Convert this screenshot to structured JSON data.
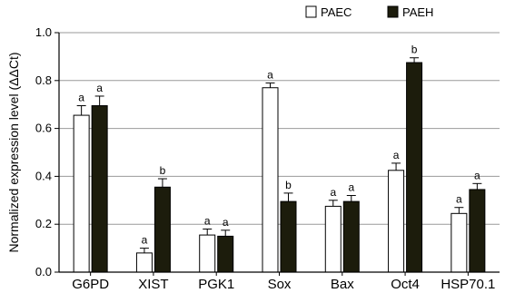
{
  "chart_data": {
    "type": "bar",
    "title": "",
    "xlabel": "",
    "ylabel": "Normalized expression level (ΔΔCt)",
    "ylim": [
      0.0,
      1.0
    ],
    "yticks": [
      "0.0",
      "0.2",
      "0.4",
      "0.6",
      "0.8",
      "1.0"
    ],
    "grid": true,
    "legend_position": "top-right",
    "categories": [
      "G6PD",
      "XIST",
      "PGK1",
      "Sox",
      "Bax",
      "Oct4",
      "HSP70.1"
    ],
    "series": [
      {
        "name": "PAEC",
        "color": "#ffffff",
        "values": [
          0.655,
          0.08,
          0.155,
          0.77,
          0.275,
          0.425,
          0.245
        ],
        "errors": [
          0.04,
          0.02,
          0.025,
          0.02,
          0.025,
          0.03,
          0.025
        ],
        "labels": [
          "a",
          "a",
          "a",
          "a",
          "a",
          "a",
          "a"
        ]
      },
      {
        "name": "PAEH",
        "color": "#1c1c0c",
        "values": [
          0.695,
          0.355,
          0.15,
          0.295,
          0.295,
          0.875,
          0.345
        ],
        "errors": [
          0.04,
          0.035,
          0.025,
          0.035,
          0.025,
          0.02,
          0.025
        ],
        "labels": [
          "a",
          "b",
          "a",
          "b",
          "a",
          "b",
          "a"
        ]
      }
    ]
  }
}
